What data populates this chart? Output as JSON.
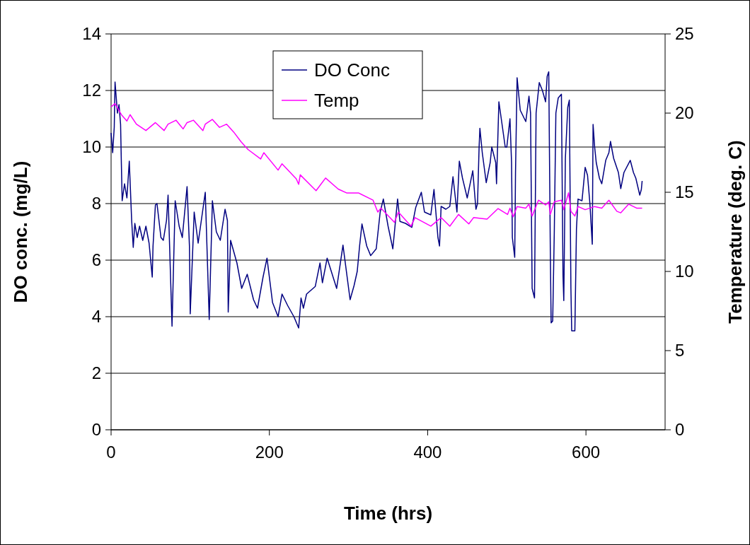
{
  "chart_data": {
    "type": "line",
    "xlabel": "Time (hrs)",
    "ylabel": "DO conc. (mg/L)",
    "y2label": "Temperature (deg. C)",
    "xlim": [
      0,
      700
    ],
    "xticks": [
      0,
      200,
      400,
      600
    ],
    "ylim": [
      0,
      14
    ],
    "yticks": [
      0,
      2,
      4,
      6,
      8,
      10,
      12,
      14
    ],
    "y2lim": [
      0,
      25
    ],
    "y2ticks": [
      0,
      5,
      10,
      15,
      20,
      25
    ],
    "grid": "y",
    "legend": "top",
    "marker": "none",
    "line_style": "solid",
    "series": [
      {
        "name": "DO Conc",
        "color": "#000080",
        "x": [
          0,
          2,
          4,
          5,
          8,
          10,
          12,
          13,
          14,
          17,
          20,
          23,
          26,
          28,
          30,
          33,
          36,
          40,
          44,
          48,
          52,
          53,
          56,
          58,
          63,
          66,
          70,
          72,
          77,
          81,
          86,
          90,
          96,
          99,
          100,
          105,
          110,
          114,
          119,
          124,
          128,
          133,
          138,
          144,
          147,
          148,
          151,
          159,
          165,
          172,
          180,
          185,
          192,
          197,
          204,
          211,
          216,
          223,
          231,
          237,
          240,
          243,
          247,
          258,
          264,
          267,
          273,
          285,
          293,
          302,
          307,
          311,
          314,
          317,
          323,
          328,
          335,
          340,
          344,
          350,
          356,
          362,
          365,
          372,
          380,
          385,
          392,
          396,
          404,
          408,
          413,
          415,
          417,
          423,
          428,
          432,
          437,
          440,
          444,
          450,
          457,
          461,
          463,
          465,
          466,
          469,
          474,
          479,
          481,
          486,
          487,
          490,
          492,
          498,
          500,
          504,
          506,
          507,
          510,
          511,
          513,
          517,
          524,
          528,
          530,
          532,
          535,
          537,
          541,
          545,
          549,
          551,
          553,
          555,
          556,
          558,
          560,
          562,
          565,
          569,
          571,
          572,
          574,
          577,
          579,
          581,
          582,
          586,
          588,
          590,
          595,
          599,
          602,
          605,
          608,
          609,
          611,
          613,
          617,
          620,
          625,
          629,
          631,
          635,
          641,
          644,
          648,
          656,
          660,
          663,
          668,
          670,
          671
        ],
        "values": [
          10.5,
          9.8,
          10.7,
          12.3,
          11.2,
          11.5,
          10.8,
          9.4,
          8.1,
          8.7,
          8.2,
          9.5,
          7.4,
          6.45,
          7.3,
          6.8,
          7.2,
          6.7,
          7.2,
          6.6,
          5.4,
          6.5,
          7.95,
          8.0,
          6.8,
          6.7,
          7.4,
          8.3,
          3.66,
          8.1,
          7.2,
          6.8,
          8.6,
          6.5,
          4.1,
          7.7,
          6.6,
          7.4,
          8.4,
          3.9,
          8.1,
          7.0,
          6.7,
          7.8,
          7.4,
          4.16,
          6.7,
          5.9,
          5.0,
          5.5,
          4.6,
          4.3,
          5.4,
          6.07,
          4.5,
          4.0,
          4.8,
          4.4,
          4.0,
          3.6,
          4.66,
          4.3,
          4.8,
          5.07,
          5.9,
          5.2,
          6.07,
          5.0,
          6.53,
          4.6,
          5.1,
          5.6,
          6.5,
          7.28,
          6.5,
          6.16,
          6.4,
          7.7,
          8.16,
          7.2,
          6.4,
          8.16,
          7.37,
          7.3,
          7.16,
          7.87,
          8.4,
          7.7,
          7.6,
          8.5,
          6.8,
          6.5,
          7.9,
          7.8,
          7.9,
          8.95,
          7.7,
          9.5,
          8.9,
          8.2,
          9.16,
          7.8,
          8.0,
          10.0,
          10.66,
          9.8,
          8.74,
          9.45,
          10.0,
          9.45,
          8.7,
          11.6,
          11.2,
          10.0,
          10.0,
          11.0,
          9.45,
          6.8,
          6.1,
          9.1,
          12.45,
          11.3,
          10.9,
          11.8,
          11.2,
          5.0,
          4.66,
          11.2,
          12.28,
          12.0,
          11.6,
          12.5,
          12.66,
          6.28,
          3.78,
          3.85,
          7.0,
          11.2,
          11.74,
          11.87,
          5.45,
          4.57,
          9.6,
          11.4,
          11.66,
          5.0,
          3.5,
          3.5,
          7.1,
          8.16,
          8.1,
          9.28,
          9.0,
          8.0,
          6.56,
          10.8,
          10.0,
          9.45,
          8.9,
          8.7,
          9.53,
          9.8,
          10.2,
          9.6,
          9.1,
          8.53,
          9.1,
          9.53,
          9.1,
          8.9,
          8.3,
          8.5,
          8.8
        ]
      },
      {
        "name": "Temp",
        "color": "#ff00ff",
        "axis": "y2",
        "x": [
          0,
          5,
          13,
          20,
          24,
          32,
          44,
          56,
          67,
          72,
          82,
          91,
          96,
          104,
          116,
          119,
          128,
          137,
          146,
          155,
          164,
          173,
          189,
          193,
          211,
          216,
          234,
          237,
          239,
          259,
          271,
          287,
          298,
          313,
          331,
          337,
          341,
          358,
          363,
          379,
          384,
          404,
          417,
          428,
          439,
          452,
          458,
          475,
          489,
          501,
          504,
          508,
          513,
          524,
          528,
          532,
          540,
          549,
          553,
          555,
          560,
          569,
          572,
          578,
          581,
          586,
          590,
          599,
          611,
          620,
          629,
          639,
          644,
          654,
          664,
          671
        ],
        "values": [
          20.4,
          20.6,
          19.9,
          19.5,
          19.9,
          19.3,
          18.9,
          19.4,
          18.9,
          19.3,
          19.55,
          19.0,
          19.4,
          19.55,
          18.9,
          19.3,
          19.6,
          19.1,
          19.3,
          18.8,
          18.2,
          17.7,
          17.1,
          17.5,
          16.4,
          16.8,
          15.85,
          15.5,
          16.1,
          15.1,
          15.9,
          15.2,
          14.95,
          14.95,
          14.5,
          13.75,
          14.0,
          13.1,
          13.75,
          12.86,
          13.4,
          12.86,
          13.4,
          12.86,
          13.6,
          13.0,
          13.4,
          13.3,
          13.97,
          13.6,
          14.0,
          13.45,
          14.1,
          14.0,
          14.25,
          13.5,
          14.5,
          14.2,
          14.4,
          13.6,
          14.4,
          14.5,
          13.9,
          14.97,
          13.8,
          13.5,
          14.1,
          13.9,
          14.1,
          14.0,
          14.5,
          13.8,
          13.7,
          14.25,
          14.0,
          14.0
        ]
      }
    ]
  }
}
